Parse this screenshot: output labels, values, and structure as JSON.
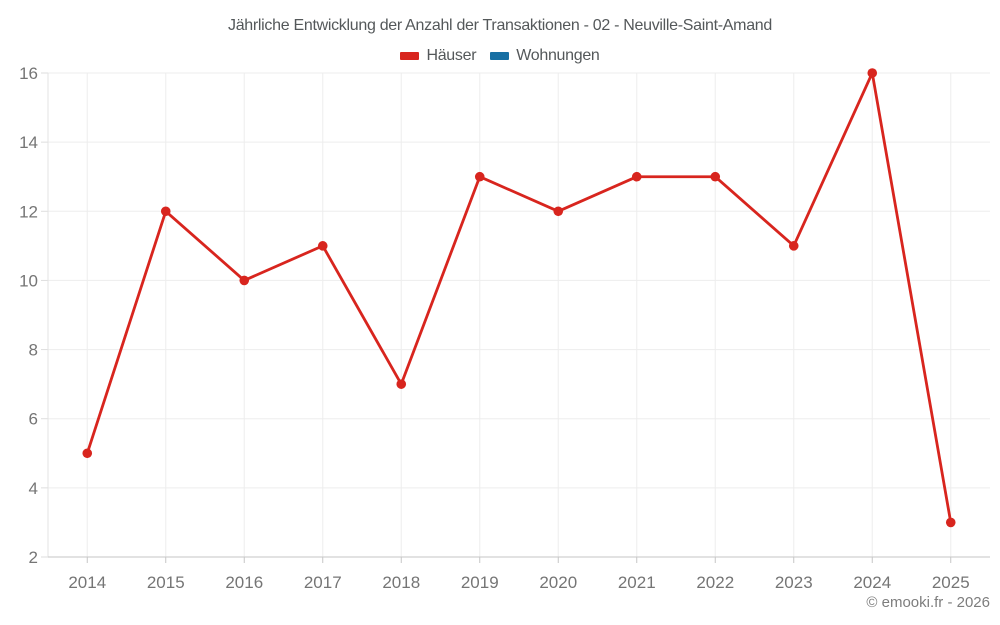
{
  "title": "Jährliche Entwicklung der Anzahl der Transaktionen - 02 - Neuville-Saint-Amand",
  "footer": "© emooki.fr - 2026",
  "colors": {
    "hauser_red": "#d8251e",
    "wohnungen_blue": "#176fa3",
    "title_text": "#54585a",
    "tick_text": "#757575",
    "footer_text": "#7d7d7d",
    "gridline": "#ededed",
    "x_axis_line": "#c6c6c6",
    "y_axis_line": "#e3e3e3",
    "y_tick_mark": "#dedede"
  },
  "chart_data": {
    "type": "line",
    "title": "Jährliche Entwicklung der Anzahl der Transaktionen - 02 - Neuville-Saint-Amand",
    "x": [
      "2014",
      "2015",
      "2016",
      "2017",
      "2018",
      "2019",
      "2020",
      "2021",
      "2022",
      "2023",
      "2024",
      "2025"
    ],
    "series": [
      {
        "name": "Häuser",
        "color": "#d8251e",
        "values": [
          5,
          12,
          10,
          11,
          7,
          13,
          12,
          13,
          13,
          11,
          16,
          3
        ]
      },
      {
        "name": "Wohnungen",
        "color": "#176fa3",
        "values": []
      }
    ],
    "xlabel": "",
    "ylabel": "",
    "ylim": [
      2,
      16
    ],
    "yticks": [
      2,
      4,
      6,
      8,
      10,
      12,
      14,
      16
    ],
    "grid": true,
    "legend_position": "top",
    "point_style": "circle"
  }
}
